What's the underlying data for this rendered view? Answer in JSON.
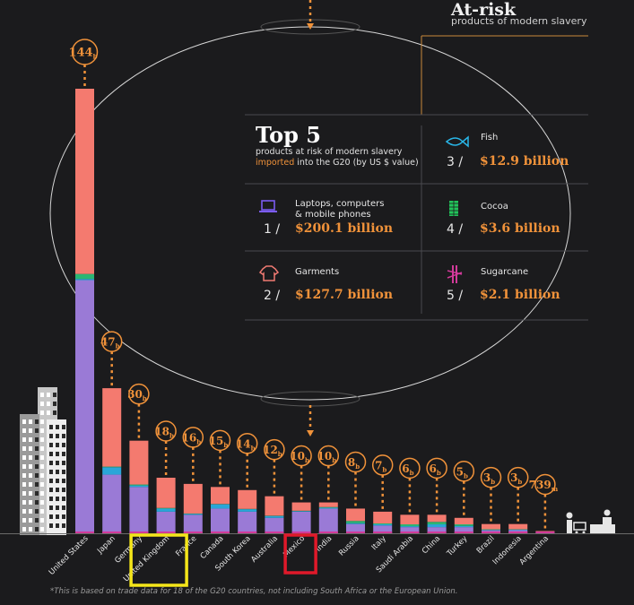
{
  "panel": {
    "title": "At-risk",
    "subtitle": "products of modern slavery",
    "top5_title": "Top 5",
    "top5_sub_line1": "products at risk of modern slavery",
    "top5_sub_highlight": "imported",
    "top5_sub_line2_rest": " into the G20 (by US $ value)",
    "products": [
      {
        "rank": "1 /",
        "name_lines": [
          "Laptops, computers",
          "& mobile phones"
        ],
        "value": "$200.1 billion",
        "icon": "laptop-icon",
        "color": "#7b5cf0"
      },
      {
        "rank": "2 /",
        "name_lines": [
          "Garments"
        ],
        "value": "$127.7 billion",
        "icon": "shirt-icon",
        "color": "#f07a72"
      },
      {
        "rank": "3 /",
        "name_lines": [
          "Fish"
        ],
        "value": "$12.9 billion",
        "icon": "fish-icon",
        "color": "#29b6e8"
      },
      {
        "rank": "4 /",
        "name_lines": [
          "Cocoa"
        ],
        "value": "$3.6 billion",
        "icon": "cocoa-icon",
        "color": "#22c35a"
      },
      {
        "rank": "5 /",
        "name_lines": [
          "Sugarcane"
        ],
        "value": "$2.1 billion",
        "icon": "sugarcane-icon",
        "color": "#d23a9a"
      }
    ]
  },
  "footnote": "*This is based on trade data for 18 of the G20 countries, not including South Africa or the European Union.",
  "colors": {
    "accent": "#f0923a",
    "background": "#1b1b1d",
    "purple": "#9a7ad6",
    "blue": "#2aa6d8",
    "green": "#2bb673",
    "coral": "#f47a6f",
    "highlight_yellow": "#f5e61a",
    "highlight_red": "#e0192a"
  },
  "chart_data": {
    "type": "bar",
    "title": "",
    "xlabel": "",
    "ylabel": "",
    "categories": [
      "United States",
      "Japan",
      "Germany",
      "United Kingdom",
      "France",
      "Canada",
      "South Korea",
      "Australia",
      "Mexico",
      "India",
      "Russia",
      "Italy",
      "Saudi Arabia",
      "China",
      "Turkey",
      "Brazil",
      "Indonesia",
      "Argentina"
    ],
    "totals": [
      144,
      47,
      30,
      18,
      16,
      15,
      14,
      12,
      10,
      10,
      8,
      7,
      6,
      6,
      5,
      3,
      3,
      0.739
    ],
    "total_labels": [
      {
        "num": "144",
        "unit": "b"
      },
      {
        "num": "47",
        "unit": "b"
      },
      {
        "num": "30",
        "unit": "b"
      },
      {
        "num": "18",
        "unit": "b"
      },
      {
        "num": "16",
        "unit": "b"
      },
      {
        "num": "15",
        "unit": "b"
      },
      {
        "num": "14",
        "unit": "b"
      },
      {
        "num": "12",
        "unit": "b"
      },
      {
        "num": "10",
        "unit": "b"
      },
      {
        "num": "10",
        "unit": "b"
      },
      {
        "num": "8",
        "unit": "b"
      },
      {
        "num": "7",
        "unit": "b"
      },
      {
        "num": "6",
        "unit": "b"
      },
      {
        "num": "6",
        "unit": "b"
      },
      {
        "num": "5",
        "unit": "b"
      },
      {
        "num": "3",
        "unit": "b"
      },
      {
        "num": "3",
        "unit": "b"
      },
      {
        "num": "739",
        "unit": "m"
      }
    ],
    "series": [
      {
        "color": "#9a7ad6",
        "values": [
          82,
          19,
          15,
          7,
          6,
          8,
          7,
          5,
          7,
          8,
          3,
          2.5,
          2,
          2,
          2,
          1,
          1,
          0.3
        ]
      },
      {
        "color": "#2aa6d8",
        "values": [
          0.4,
          2.4,
          0.5,
          1,
          0.3,
          1.4,
          0.8,
          0.6,
          0.2,
          0.3,
          0.3,
          0.4,
          0.3,
          0.9,
          0.4,
          0.1,
          0.2,
          0.05
        ]
      },
      {
        "color": "#2bb673",
        "values": [
          1.6,
          0.2,
          0.3,
          0.2,
          0.1,
          0.1,
          0.1,
          0.1,
          0.1,
          0.2,
          0.7,
          0.3,
          0.6,
          0.8,
          0.5,
          0.2,
          0.1,
          0.05
        ]
      },
      {
        "color": "#f47a6f",
        "values": [
          60,
          25.4,
          14.2,
          9.8,
          9.6,
          5.5,
          6.1,
          6.3,
          2.7,
          1.5,
          4,
          3.8,
          3.1,
          2.3,
          2.1,
          1.7,
          1.7,
          0.339
        ]
      }
    ],
    "highlight_boxes": [
      {
        "category": "United Kingdom",
        "color": "#f5e61a"
      },
      {
        "category": "Mexico",
        "color": "#e0192a"
      }
    ]
  }
}
